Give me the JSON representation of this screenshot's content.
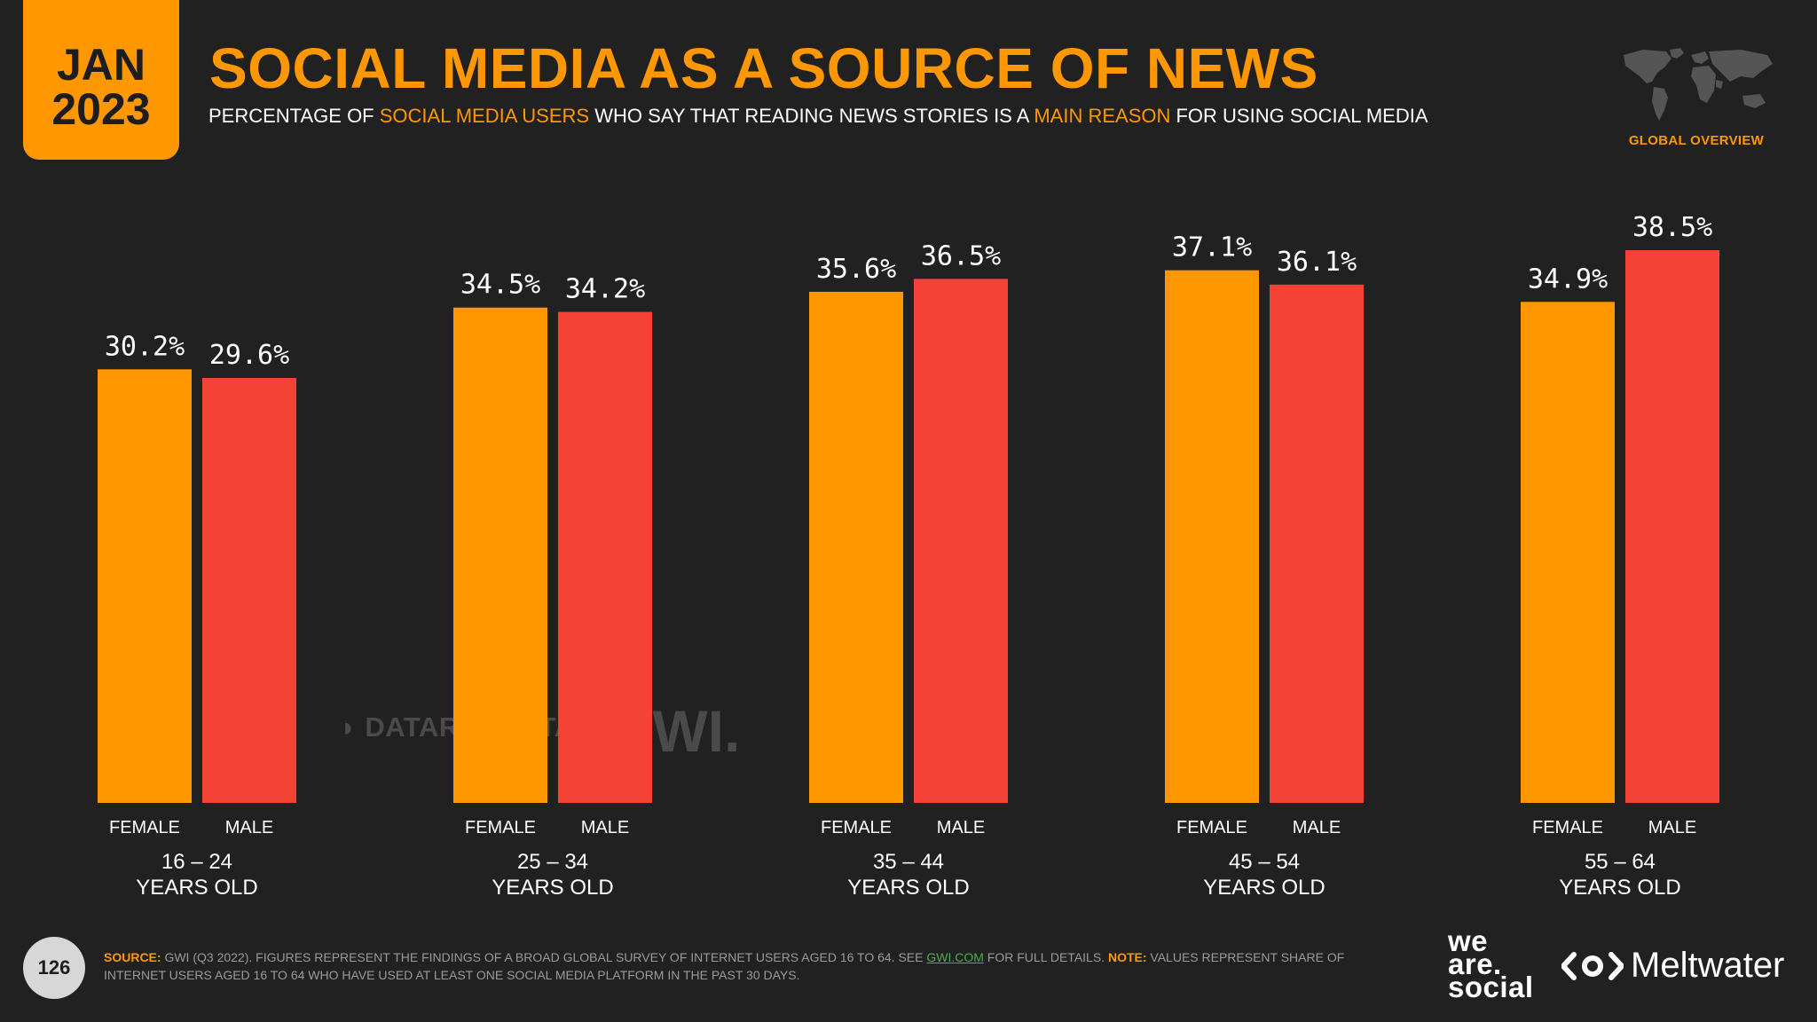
{
  "header": {
    "badge_month": "JAN",
    "badge_year": "2023",
    "title": "SOCIAL MEDIA AS A SOURCE OF NEWS",
    "subtitle_parts": [
      "PERCENTAGE OF ",
      "SOCIAL MEDIA USERS",
      " WHO SAY THAT READING NEWS STORIES IS A ",
      "MAIN REASON",
      " FOR USING SOCIAL MEDIA"
    ],
    "globe_label": "GLOBAL OVERVIEW"
  },
  "watermarks": {
    "dataportal": "DATAREPORTAL",
    "gwi": "GWI."
  },
  "chart_data": {
    "type": "bar",
    "title": "SOCIAL MEDIA AS A SOURCE OF NEWS",
    "ylabel": "",
    "xlabel": "",
    "ylim": [
      0,
      38.5
    ],
    "groups": [
      {
        "age_range": "16 – 24",
        "age_suffix": "YEARS OLD",
        "bars": [
          {
            "label": "FEMALE",
            "value": 30.2,
            "display": "30.2%"
          },
          {
            "label": "MALE",
            "value": 29.6,
            "display": "29.6%"
          }
        ]
      },
      {
        "age_range": "25 – 34",
        "age_suffix": "YEARS OLD",
        "bars": [
          {
            "label": "FEMALE",
            "value": 34.5,
            "display": "34.5%"
          },
          {
            "label": "MALE",
            "value": 34.2,
            "display": "34.2%"
          }
        ]
      },
      {
        "age_range": "35 – 44",
        "age_suffix": "YEARS OLD",
        "bars": [
          {
            "label": "FEMALE",
            "value": 35.6,
            "display": "35.6%"
          },
          {
            "label": "MALE",
            "value": 36.5,
            "display": "36.5%"
          }
        ]
      },
      {
        "age_range": "45 – 54",
        "age_suffix": "YEARS OLD",
        "bars": [
          {
            "label": "FEMALE",
            "value": 37.1,
            "display": "37.1%"
          },
          {
            "label": "MALE",
            "value": 36.1,
            "display": "36.1%"
          }
        ]
      },
      {
        "age_range": "55 – 64",
        "age_suffix": "YEARS OLD",
        "bars": [
          {
            "label": "FEMALE",
            "value": 34.9,
            "display": "34.9%"
          },
          {
            "label": "MALE",
            "value": 38.5,
            "display": "38.5%"
          }
        ]
      }
    ],
    "colors": {
      "female": "#ff9800",
      "male": "#f44336"
    }
  },
  "footer": {
    "page_number": "126",
    "source_label": "SOURCE:",
    "source_text": " GWI (Q3 2022). FIGURES REPRESENT THE FINDINGS OF A BROAD GLOBAL SURVEY OF INTERNET USERS AGED 16 TO 64. SEE ",
    "source_link": "GWI.COM",
    "source_after": " FOR FULL DETAILS. ",
    "note_label": "NOTE:",
    "note_text": " VALUES REPRESENT SHARE OF INTERNET USERS AGED 16 TO 64 WHO HAVE USED AT LEAST ONE SOCIAL MEDIA PLATFORM IN THE PAST 30 DAYS.",
    "logo_was_line1": "we",
    "logo_was_line2": "are.",
    "logo_was_line3": "social",
    "logo_meltwater": "Meltwater"
  }
}
